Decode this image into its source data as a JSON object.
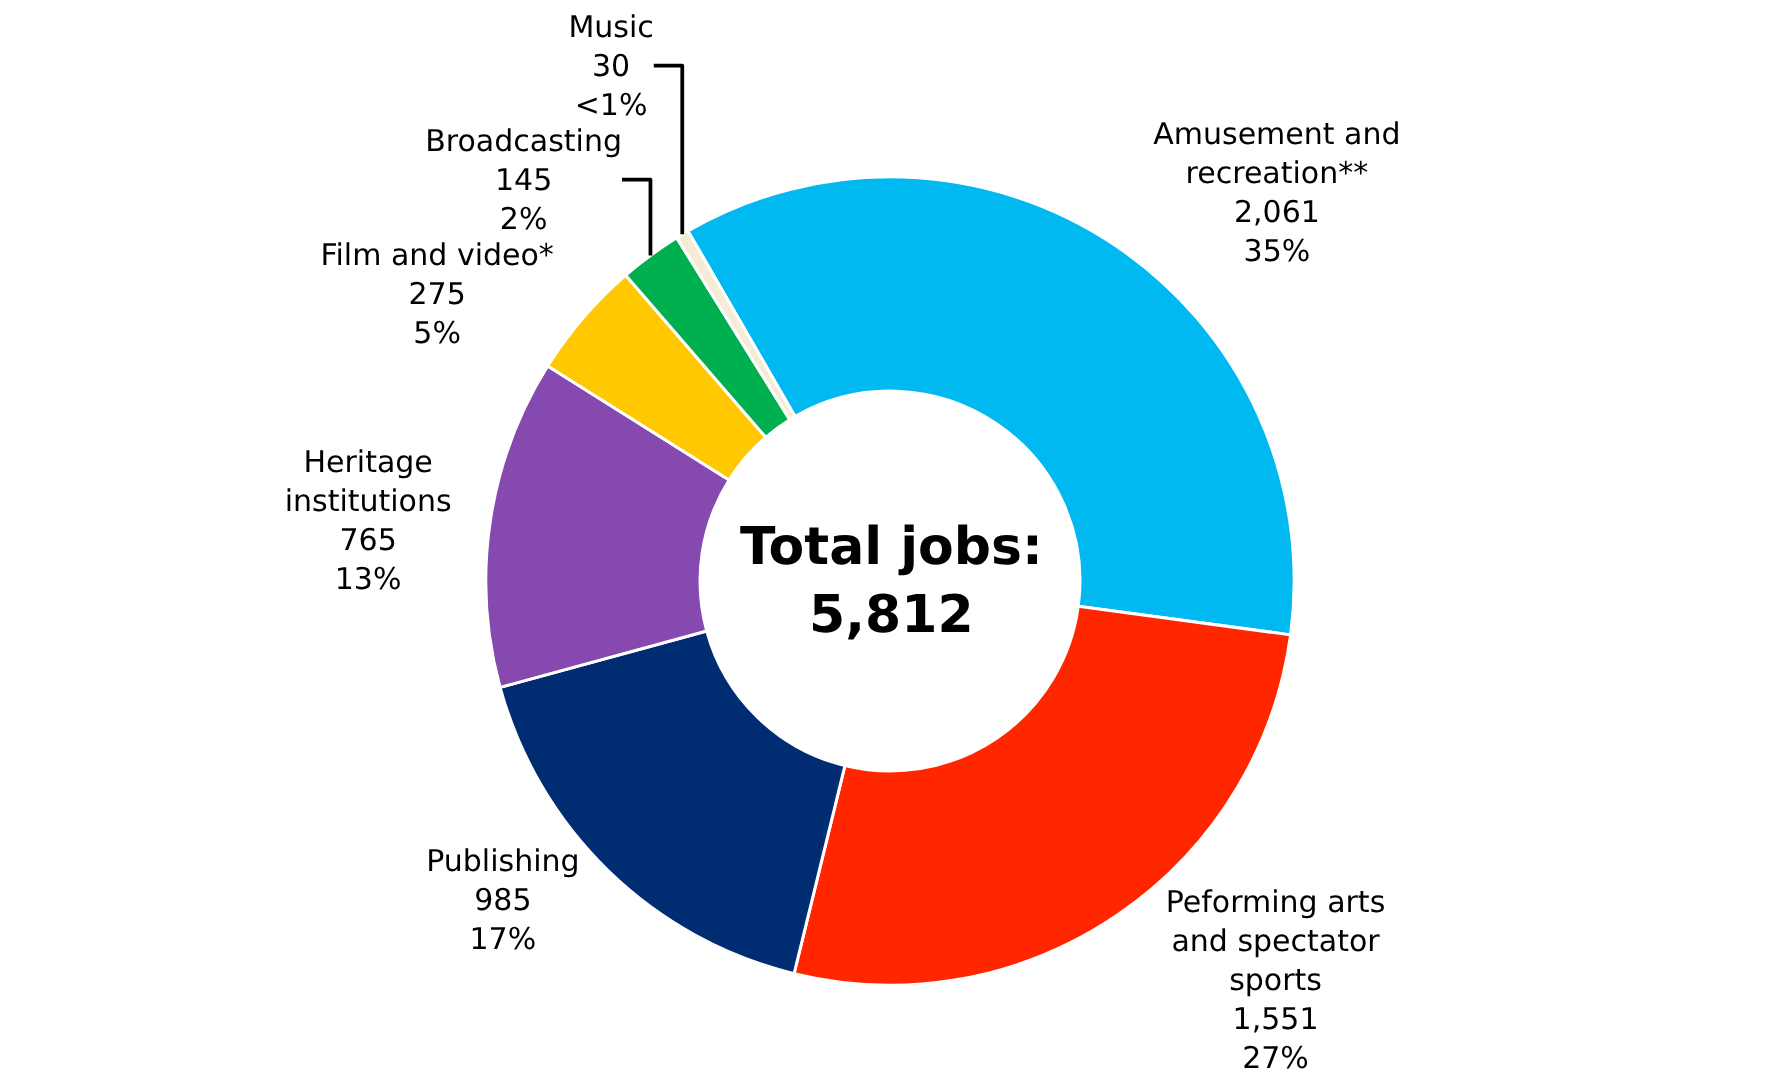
{
  "chart_data": {
    "type": "donut",
    "categories": [
      "Amusement and recreation**",
      "Peforming arts and spectator sports",
      "Publishing",
      "Heritage institutions",
      "Film and video*",
      "Broadcasting",
      "Music"
    ],
    "values": [
      2061,
      1551,
      985,
      765,
      275,
      145,
      30
    ],
    "value_labels": [
      "2,061\n35%",
      "1,551\n27%",
      "985\n17%",
      "765\n13%",
      "275\n5%",
      "145\n2%",
      "30\n<1%"
    ],
    "colors": [
      "#00b9f1",
      "#ff2600",
      "#002d72",
      "#8549b0",
      "#ffc800",
      "#00b050",
      "#f5ecd7"
    ],
    "annotations": [
      "Total jobs:\n5,812"
    ],
    "legend": false
  }
}
